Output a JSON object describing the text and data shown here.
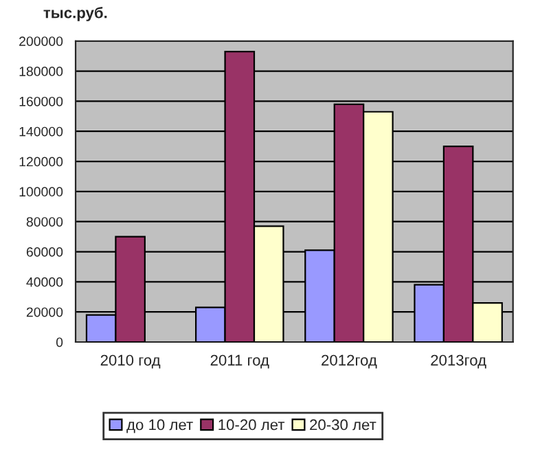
{
  "chart_data": {
    "type": "bar",
    "ylabel": "тыс.руб.",
    "categories": [
      "2010 год",
      "2011 год",
      "2012год",
      "2013год"
    ],
    "series": [
      {
        "name": "до 10 лет",
        "color": "#9999ff",
        "values": [
          18000,
          23000,
          61000,
          38000
        ]
      },
      {
        "name": "10-20 лет",
        "color": "#993366",
        "values": [
          70000,
          193000,
          158000,
          130000
        ]
      },
      {
        "name": "20-30 лет",
        "color": "#ffffcc",
        "values": [
          null,
          77000,
          153000,
          26000
        ]
      }
    ],
    "ylim": [
      0,
      200000
    ],
    "yticks": [
      0,
      20000,
      40000,
      60000,
      80000,
      100000,
      120000,
      140000,
      160000,
      180000,
      200000
    ],
    "grid": "y",
    "legend": "bottom"
  }
}
